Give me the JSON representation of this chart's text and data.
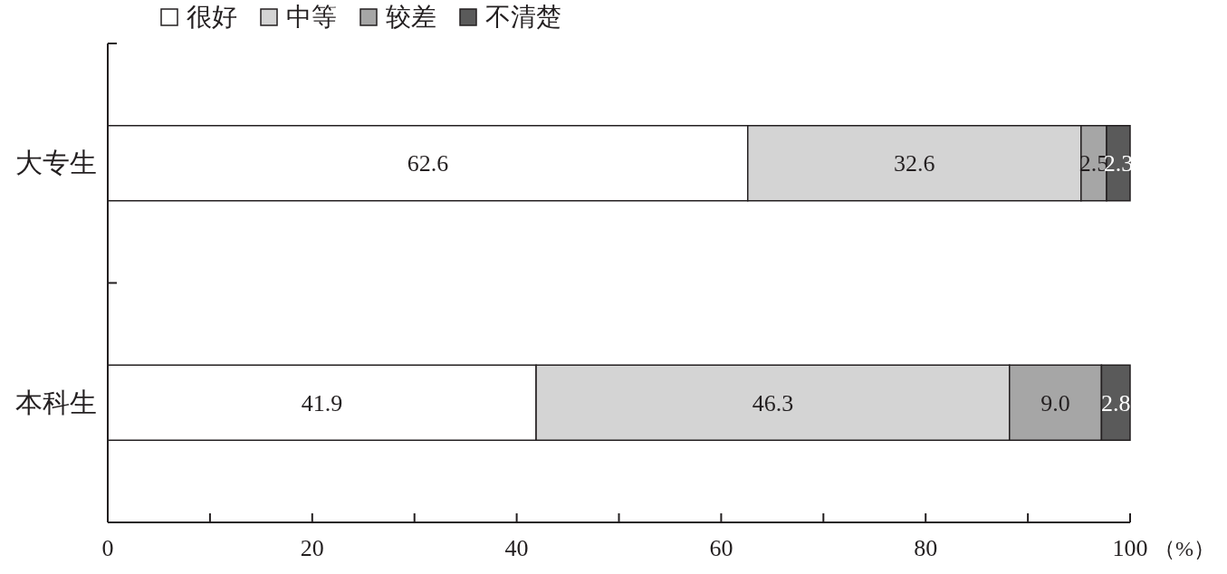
{
  "chart_data": {
    "type": "bar",
    "orientation": "horizontal",
    "stacked": true,
    "categories": [
      "大专生",
      "本科生"
    ],
    "series": [
      {
        "name": "很好",
        "color": "#ffffff",
        "values": [
          62.6,
          41.9
        ],
        "value_labels": [
          "62.6",
          "41.9"
        ]
      },
      {
        "name": "中等",
        "color": "#d4d4d4",
        "values": [
          32.6,
          46.3
        ],
        "value_labels": [
          "32.6",
          "46.3"
        ]
      },
      {
        "name": "较差",
        "color": "#a6a6a6",
        "values": [
          2.5,
          9.0
        ],
        "value_labels": [
          "2.5",
          "9.0"
        ]
      },
      {
        "name": "不清楚",
        "color": "#5a5a5a",
        "values": [
          2.3,
          2.8
        ],
        "value_labels": [
          "2.3",
          "2.8"
        ]
      }
    ],
    "xlim": [
      0,
      100
    ],
    "xticks": [
      0,
      {
        "value": 10,
        "label": null
      },
      20,
      {
        "value": 30,
        "label": null
      },
      40,
      {
        "value": 50,
        "label": null
      },
      60,
      {
        "value": 70,
        "label": null
      },
      80,
      {
        "value": 90,
        "label": null
      },
      100
    ],
    "xlabel": "（%）",
    "legend": "top",
    "grid": false
  }
}
